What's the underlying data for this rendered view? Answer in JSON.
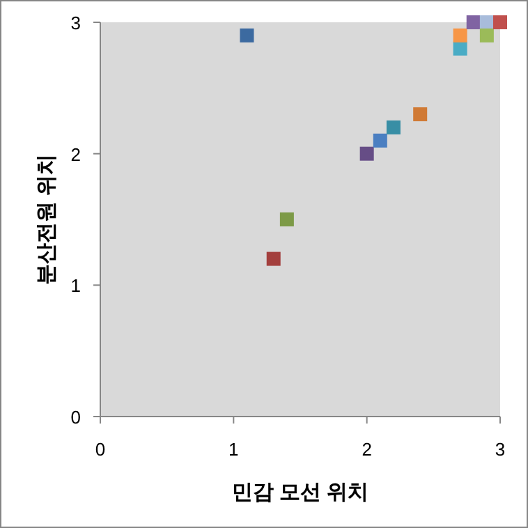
{
  "chart_data": {
    "type": "scatter",
    "xlabel": "민감 모선 위치",
    "ylabel": "분산전원 위치",
    "marker": "square",
    "grid": false,
    "x": [
      1.1,
      1.3,
      1.4,
      2.0,
      2.1,
      2.2,
      2.4,
      2.7,
      2.7,
      2.8,
      2.9,
      2.9,
      3.0
    ],
    "values": [
      2.9,
      1.2,
      1.5,
      2.0,
      2.1,
      2.2,
      2.3,
      2.8,
      2.9,
      3.0,
      3.0,
      2.9,
      3.0
    ],
    "colors": [
      "#3c6aa0",
      "#a33f3d",
      "#7d9a47",
      "#664d86",
      "#4b7fc1",
      "#388ea5",
      "#d07a35",
      "#4aacc5",
      "#f79646",
      "#8064a2",
      "#a8bcdb",
      "#9bbb59",
      "#c0504d"
    ],
    "xlim": [
      0,
      3
    ],
    "ylim": [
      0,
      3
    ],
    "xticks": [
      0,
      1,
      2,
      3
    ],
    "yticks": [
      0,
      1,
      2,
      3
    ]
  }
}
